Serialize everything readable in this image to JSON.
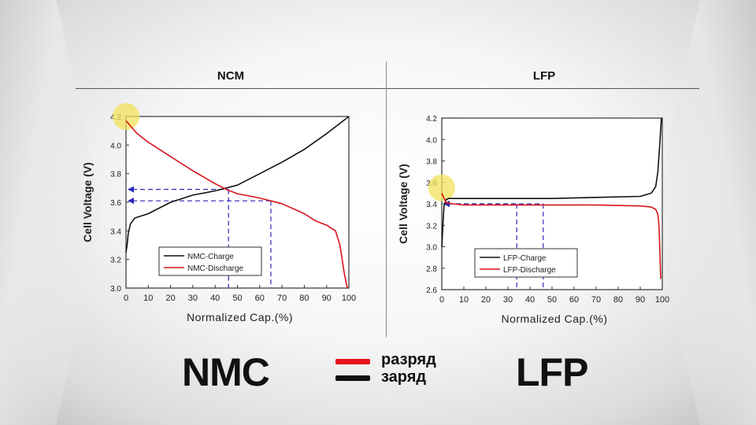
{
  "header": {
    "left_title": "NCM",
    "right_title": "LFP"
  },
  "bottom": {
    "left_label": "NMC",
    "right_label": "LFP",
    "legend": [
      {
        "label": "разряд",
        "color": "#e8141b"
      },
      {
        "label": "заряд",
        "color": "#111111"
      }
    ]
  },
  "colors": {
    "charge": "#111111",
    "discharge": "#d8141b",
    "guide": "#2a2ab8",
    "highlight": "#f2e25a"
  },
  "chart_data": [
    {
      "type": "line",
      "xlabel": "Normalized Cap.(%)",
      "ylabel": "Cell Voltage (V)",
      "xlim": [
        0,
        100
      ],
      "ylim": [
        3.0,
        4.2
      ],
      "xticks": [
        0,
        10,
        20,
        30,
        40,
        50,
        60,
        70,
        80,
        90,
        100
      ],
      "yticks": [
        3.0,
        3.2,
        3.4,
        3.6,
        3.8,
        4.0,
        4.2
      ],
      "ytick_labels": [
        "3.0",
        "3.2",
        "3.4",
        "3.6",
        "3.8",
        "4.0",
        "4.2"
      ],
      "grid": false,
      "legend_position": "bottom-left",
      "series": [
        {
          "name": "NMC-Charge",
          "x": [
            0,
            0.5,
            1,
            2,
            4,
            10,
            20,
            30,
            40,
            50,
            60,
            70,
            80,
            90,
            100
          ],
          "values": [
            3.25,
            3.3,
            3.38,
            3.45,
            3.49,
            3.52,
            3.6,
            3.65,
            3.68,
            3.72,
            3.8,
            3.88,
            3.97,
            4.08,
            4.2
          ]
        },
        {
          "name": "NMC-Discharge",
          "x": [
            0,
            5,
            10,
            20,
            30,
            40,
            45,
            50,
            60,
            70,
            80,
            85,
            90,
            94,
            96,
            97,
            98,
            99,
            99.5
          ],
          "values": [
            4.17,
            4.08,
            4.02,
            3.92,
            3.82,
            3.73,
            3.69,
            3.66,
            3.63,
            3.59,
            3.52,
            3.47,
            3.44,
            3.4,
            3.3,
            3.2,
            3.1,
            3.02,
            3.0
          ]
        }
      ],
      "guides": [
        {
          "y": 3.69,
          "x": 46
        },
        {
          "y": 3.61,
          "x": 65
        }
      ]
    },
    {
      "type": "line",
      "xlabel": "Normalized Cap.(%)",
      "ylabel": "Cell Voltage (V)",
      "xlim": [
        0,
        100
      ],
      "ylim": [
        2.6,
        4.2
      ],
      "xticks": [
        0,
        10,
        20,
        30,
        40,
        50,
        60,
        70,
        80,
        90,
        100
      ],
      "yticks": [
        2.6,
        2.8,
        3.0,
        3.2,
        3.4,
        3.6,
        3.8,
        4.0,
        4.2
      ],
      "ytick_labels": [
        "2.6",
        "2.8",
        "3.0",
        "3.2",
        "3.4",
        "3.6",
        "3.8",
        "4.0",
        "4.2"
      ],
      "grid": false,
      "legend_position": "bottom-left",
      "series": [
        {
          "name": "LFP-Charge",
          "x": [
            0,
            0.5,
            1,
            2,
            3,
            5,
            10,
            30,
            50,
            70,
            90,
            95,
            97,
            98,
            98.5,
            99,
            99.3,
            99.6
          ],
          "values": [
            3.0,
            3.2,
            3.38,
            3.44,
            3.45,
            3.45,
            3.45,
            3.45,
            3.45,
            3.46,
            3.47,
            3.5,
            3.56,
            3.7,
            3.85,
            4.0,
            4.1,
            4.2
          ]
        },
        {
          "name": "LFP-Discharge",
          "x": [
            0,
            2,
            5,
            10,
            30,
            50,
            70,
            90,
            95,
            97,
            98,
            98.5,
            99,
            99.3
          ],
          "values": [
            3.5,
            3.41,
            3.4,
            3.39,
            3.39,
            3.39,
            3.39,
            3.38,
            3.37,
            3.35,
            3.3,
            3.2,
            2.9,
            2.7
          ]
        }
      ],
      "guides": [
        {
          "y": 3.4,
          "x": 34
        },
        {
          "y": 3.4,
          "x": 46
        }
      ]
    }
  ]
}
